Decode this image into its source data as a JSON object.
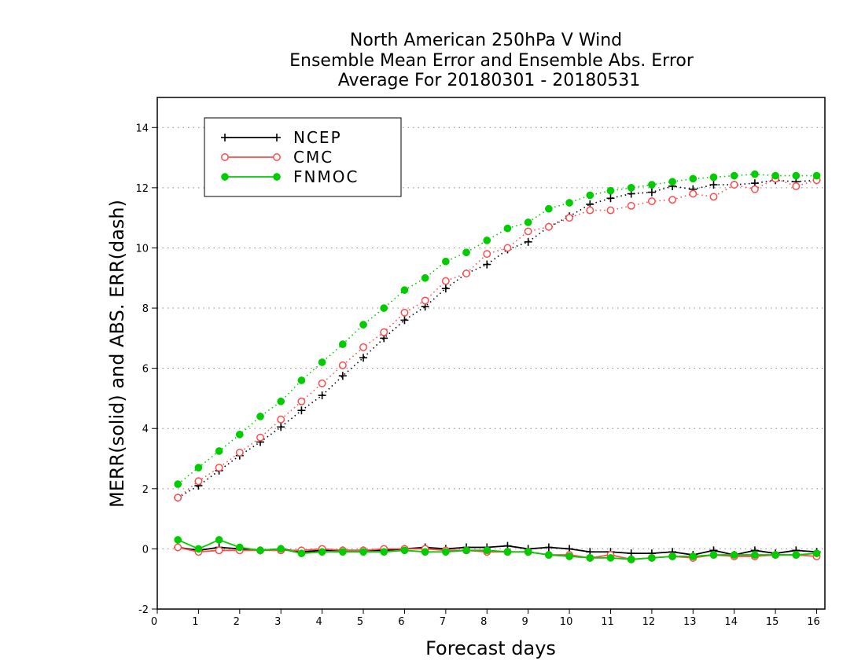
{
  "chart_data": {
    "type": "line",
    "title_lines": [
      "North American 250hPa V Wind",
      "Ensemble Mean Error and Ensemble Abs. Error",
      "Average For 20180301 - 20180531"
    ],
    "xlabel": "Forecast days",
    "ylabel": "MERR(solid) and ABS. ERR(dash)",
    "xlim": [
      0,
      16.2
    ],
    "ylim": [
      -2,
      15
    ],
    "x_ticks": [
      0,
      1,
      2,
      3,
      4,
      5,
      6,
      7,
      8,
      9,
      10,
      11,
      12,
      13,
      14,
      15,
      16
    ],
    "y_ticks": [
      -2,
      0,
      2,
      4,
      6,
      8,
      10,
      12,
      14
    ],
    "grid": "horizontal dotted",
    "legend_position": "top-left",
    "x": [
      0.5,
      1.0,
      1.5,
      2.0,
      2.5,
      3.0,
      3.5,
      4.0,
      4.5,
      5.0,
      5.5,
      6.0,
      6.5,
      7.0,
      7.5,
      8.0,
      8.5,
      9.0,
      9.5,
      10.0,
      10.5,
      11.0,
      11.5,
      12.0,
      12.5,
      13.0,
      13.5,
      14.0,
      14.5,
      15.0,
      15.5,
      16.0
    ],
    "series": [
      {
        "name": "NCEP",
        "color": "#000000",
        "marker": "plus",
        "mean_error": [
          0.05,
          -0.05,
          0.05,
          0.0,
          -0.05,
          0.0,
          -0.1,
          -0.05,
          -0.05,
          -0.05,
          -0.05,
          0.0,
          0.05,
          0.0,
          0.05,
          0.05,
          0.1,
          0.0,
          0.05,
          0.0,
          -0.1,
          -0.1,
          -0.15,
          -0.15,
          -0.1,
          -0.2,
          -0.05,
          -0.2,
          -0.05,
          -0.15,
          -0.05,
          -0.1
        ],
        "abs_error": [
          1.7,
          2.1,
          2.6,
          3.1,
          3.55,
          4.05,
          4.6,
          5.1,
          5.75,
          6.35,
          7.0,
          7.6,
          8.05,
          8.65,
          9.15,
          9.45,
          9.95,
          10.2,
          10.7,
          11.05,
          11.45,
          11.65,
          11.8,
          11.85,
          12.05,
          11.95,
          12.1,
          12.1,
          12.15,
          12.25,
          12.2,
          12.25
        ]
      },
      {
        "name": "CMC",
        "color": "#ff4c4c",
        "marker": "open-circle",
        "mean_error": [
          0.05,
          -0.1,
          -0.05,
          -0.05,
          -0.05,
          -0.05,
          -0.05,
          0.0,
          -0.05,
          -0.05,
          0.0,
          0.0,
          0.0,
          -0.05,
          -0.05,
          -0.1,
          -0.1,
          -0.1,
          -0.2,
          -0.2,
          -0.3,
          -0.2,
          -0.35,
          -0.3,
          -0.25,
          -0.3,
          -0.2,
          -0.25,
          -0.25,
          -0.2,
          -0.2,
          -0.25
        ],
        "abs_error": [
          1.7,
          2.25,
          2.7,
          3.2,
          3.7,
          4.3,
          4.9,
          5.5,
          6.1,
          6.7,
          7.2,
          7.85,
          8.25,
          8.9,
          9.15,
          9.8,
          10.0,
          10.55,
          10.7,
          11.0,
          11.25,
          11.25,
          11.4,
          11.55,
          11.6,
          11.8,
          11.7,
          12.1,
          11.95,
          12.3,
          12.05,
          12.25
        ]
      },
      {
        "name": "FNMOC",
        "color": "#00cc00",
        "marker": "filled-circle",
        "mean_error": [
          0.3,
          0.0,
          0.3,
          0.05,
          -0.05,
          0.0,
          -0.15,
          -0.1,
          -0.1,
          -0.1,
          -0.1,
          -0.05,
          -0.1,
          -0.1,
          -0.05,
          -0.05,
          -0.1,
          -0.1,
          -0.2,
          -0.25,
          -0.3,
          -0.3,
          -0.35,
          -0.3,
          -0.25,
          -0.25,
          -0.2,
          -0.2,
          -0.2,
          -0.2,
          -0.2,
          -0.15
        ],
        "abs_error": [
          2.15,
          2.7,
          3.25,
          3.8,
          4.4,
          4.9,
          5.6,
          6.2,
          6.8,
          7.45,
          8.0,
          8.6,
          9.0,
          9.55,
          9.85,
          10.25,
          10.65,
          10.85,
          11.3,
          11.5,
          11.75,
          11.9,
          12.0,
          12.1,
          12.2,
          12.3,
          12.35,
          12.4,
          12.45,
          12.4,
          12.4,
          12.4
        ]
      }
    ]
  }
}
